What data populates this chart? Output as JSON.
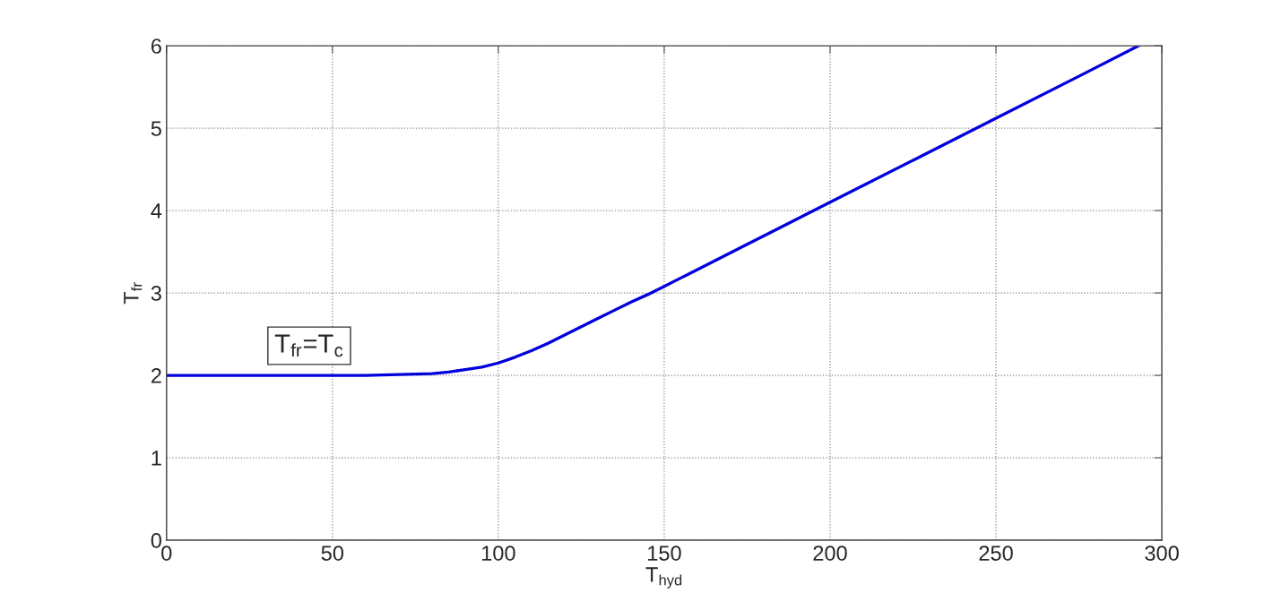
{
  "chart_data": {
    "type": "line",
    "xlabel": "T$_{hyd}$",
    "ylabel": "T$_{fr}$",
    "x": [
      0,
      20,
      40,
      60,
      70,
      80,
      85,
      90,
      95,
      100,
      105,
      110,
      115,
      120,
      125,
      130,
      135,
      140,
      145,
      150,
      175,
      200,
      225,
      250,
      275,
      293
    ],
    "series": [
      {
        "color": "#0000dd",
        "values": [
          2.0,
          2.0,
          2.0,
          2.0,
          2.01,
          2.02,
          2.04,
          2.07,
          2.1,
          2.15,
          2.22,
          2.3,
          2.39,
          2.49,
          2.59,
          2.69,
          2.79,
          2.89,
          2.98,
          3.08,
          3.59,
          4.1,
          4.61,
          5.12,
          5.63,
          6.0
        ]
      }
    ],
    "xlim": [
      0,
      300
    ],
    "ylim": [
      0,
      6
    ],
    "xticks": [
      0,
      50,
      100,
      150,
      200,
      250,
      300
    ],
    "yticks": [
      0,
      1,
      2,
      3,
      4,
      5,
      6
    ],
    "grid": true,
    "line_style": "solid",
    "marker": "none",
    "annotations": [
      {
        "text": "T$_{fr}$=T$_{c}$",
        "x": 43,
        "y": 2
      }
    ]
  }
}
